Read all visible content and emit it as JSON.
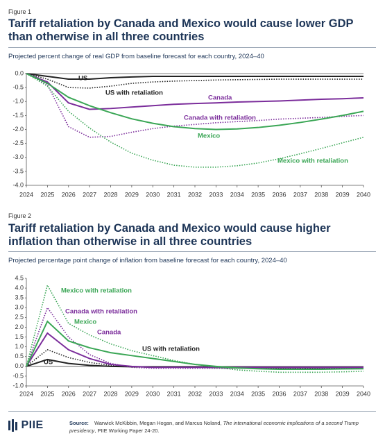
{
  "chart_data": [
    {
      "type": "line",
      "figure_label": "Figure 1",
      "title": "Tariff retaliation by Canada and Mexico would cause lower GDP than otherwise in all three countries",
      "subtitle": "Projected percent change of real GDP from baseline forecast for each country, 2024–40",
      "x": [
        2024,
        2025,
        2026,
        2027,
        2028,
        2029,
        2030,
        2031,
        2032,
        2033,
        2034,
        2035,
        2036,
        2037,
        2038,
        2039,
        2040
      ],
      "xlim": [
        2024,
        2040
      ],
      "xticks": [
        2024,
        2025,
        2026,
        2027,
        2028,
        2029,
        2030,
        2031,
        2032,
        2033,
        2034,
        2035,
        2036,
        2037,
        2038,
        2039,
        2040
      ],
      "ylim": [
        -4,
        0
      ],
      "yticks": [
        {
          "value": 0,
          "label": "0.0"
        },
        -0.5,
        {
          "value": -1,
          "label": "-1.0"
        },
        -1.5,
        {
          "value": -2,
          "label": "-2.0"
        },
        -2.5,
        {
          "value": -3,
          "label": "-3.0"
        },
        -3.5,
        {
          "value": -4,
          "label": "-4.0"
        }
      ],
      "grid": false,
      "series": [
        {
          "name": "US",
          "color": "#222222",
          "dashed": false,
          "values": [
            0,
            -0.1,
            -0.2,
            -0.2,
            -0.15,
            -0.12,
            -0.1,
            -0.1,
            -0.1,
            -0.1,
            -0.1,
            -0.1,
            -0.1,
            -0.1,
            -0.1,
            -0.1,
            -0.1
          ]
        },
        {
          "name": "US with retaliation",
          "color": "#222222",
          "dashed": true,
          "values": [
            0,
            -0.2,
            -0.5,
            -0.52,
            -0.45,
            -0.35,
            -0.3,
            -0.27,
            -0.25,
            -0.23,
            -0.22,
            -0.21,
            -0.2,
            -0.2,
            -0.2,
            -0.2,
            -0.2
          ]
        },
        {
          "name": "Canada",
          "color": "#7b2d9b",
          "dashed": false,
          "values": [
            0,
            -0.3,
            -1.05,
            -1.28,
            -1.25,
            -1.2,
            -1.15,
            -1.1,
            -1.07,
            -1.05,
            -1.02,
            -1,
            -0.98,
            -0.95,
            -0.92,
            -0.9,
            -0.87
          ]
        },
        {
          "name": "Canada with retaliation",
          "color": "#7b2d9b",
          "dashed": true,
          "values": [
            0,
            -0.4,
            -1.9,
            -2.28,
            -2.25,
            -2.1,
            -1.97,
            -1.88,
            -1.82,
            -1.76,
            -1.72,
            -1.68,
            -1.63,
            -1.6,
            -1.57,
            -1.53,
            -1.5
          ]
        },
        {
          "name": "Mexico",
          "color": "#3aa655",
          "dashed": false,
          "values": [
            0,
            -0.35,
            -0.85,
            -1.15,
            -1.4,
            -1.62,
            -1.78,
            -1.9,
            -1.97,
            -2,
            -1.98,
            -1.93,
            -1.85,
            -1.75,
            -1.63,
            -1.5,
            -1.35
          ]
        },
        {
          "name": "Mexico with retaliation",
          "color": "#3aa655",
          "dashed": true,
          "values": [
            0,
            -0.45,
            -1.35,
            -1.95,
            -2.45,
            -2.85,
            -3.1,
            -3.28,
            -3.35,
            -3.35,
            -3.3,
            -3.2,
            -3.05,
            -2.87,
            -2.68,
            -2.48,
            -2.28
          ]
        }
      ]
    },
    {
      "type": "line",
      "figure_label": "Figure 2",
      "title": "Tariff retaliation by Canada and Mexico would cause higher inflation than otherwise in all three countries",
      "subtitle": "Projected percentage point change of inflation from baseline forecast for each country, 2024–40",
      "x": [
        2024,
        2025,
        2026,
        2027,
        2028,
        2029,
        2030,
        2031,
        2032,
        2033,
        2034,
        2035,
        2036,
        2037,
        2038,
        2039,
        2040
      ],
      "xlim": [
        2024,
        2040
      ],
      "xticks": [
        2024,
        2025,
        2026,
        2027,
        2028,
        2029,
        2030,
        2031,
        2032,
        2033,
        2034,
        2035,
        2036,
        2037,
        2038,
        2039,
        2040
      ],
      "ylim": [
        -1,
        4.5
      ],
      "yticks": [
        4.5,
        {
          "value": 4,
          "label": "4.0"
        },
        3.5,
        {
          "value": 3,
          "label": "3.0"
        },
        2.5,
        {
          "value": 2,
          "label": "2.0"
        },
        1.5,
        {
          "value": 1,
          "label": "1.0"
        },
        0.5,
        {
          "value": 0,
          "label": "0.0"
        },
        -0.5,
        {
          "value": -1,
          "label": "-1.0"
        }
      ],
      "grid": false,
      "series": [
        {
          "name": "US",
          "color": "#222222",
          "dashed": false,
          "values": [
            0,
            0.35,
            0.15,
            0.05,
            0,
            -0.02,
            -0.03,
            -0.03,
            -0.03,
            -0.05,
            -0.05,
            -0.05,
            -0.05,
            -0.05,
            -0.05,
            -0.05,
            -0.05
          ]
        },
        {
          "name": "US with retaliation",
          "color": "#222222",
          "dashed": true,
          "values": [
            0,
            0.85,
            0.45,
            0.2,
            0.05,
            -0.02,
            -0.05,
            -0.05,
            -0.05,
            -0.07,
            -0.08,
            -0.1,
            -0.1,
            -0.1,
            -0.1,
            -0.1,
            -0.1
          ]
        },
        {
          "name": "Canada",
          "color": "#7b2d9b",
          "dashed": false,
          "values": [
            0,
            1.7,
            0.85,
            0.4,
            0.1,
            0,
            -0.05,
            -0.05,
            -0.05,
            -0.05,
            -0.05,
            -0.05,
            -0.05,
            -0.05,
            -0.05,
            -0.05,
            -0.05
          ]
        },
        {
          "name": "Canada with retaliation",
          "color": "#7b2d9b",
          "dashed": true,
          "values": [
            0,
            3,
            1.5,
            0.6,
            0.15,
            -0.05,
            -0.1,
            -0.1,
            -0.1,
            -0.1,
            -0.1,
            -0.1,
            -0.1,
            -0.1,
            -0.1,
            -0.1,
            -0.1
          ]
        },
        {
          "name": "Mexico",
          "color": "#3aa655",
          "dashed": false,
          "values": [
            0,
            2.3,
            1.3,
            0.95,
            0.7,
            0.55,
            0.4,
            0.25,
            0.1,
            0,
            -0.08,
            -0.12,
            -0.15,
            -0.15,
            -0.15,
            -0.13,
            -0.12
          ]
        },
        {
          "name": "Mexico with retaliation",
          "color": "#3aa655",
          "dashed": true,
          "values": [
            0,
            4.15,
            2.2,
            1.6,
            1.15,
            0.8,
            0.55,
            0.3,
            0.1,
            -0.05,
            -0.18,
            -0.25,
            -0.3,
            -0.3,
            -0.3,
            -0.28,
            -0.25
          ]
        }
      ]
    }
  ],
  "source": {
    "label": "Source:",
    "authors": "Warwick McKibbin, Megan Hogan, and Marcus Noland,",
    "title": "The international economic implications of a second Trump presidency",
    "publication": ", PIIE Working Paper 24-20."
  },
  "logo": "PIIE"
}
